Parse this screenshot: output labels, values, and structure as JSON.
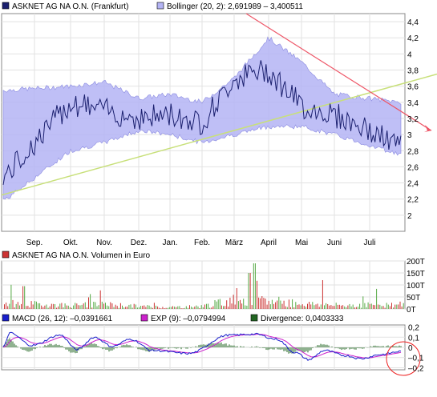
{
  "price_panel": {
    "legend": [
      {
        "label": "ASKNET AG NA O.N. (Frankfurt)",
        "color": "#1a1f6e"
      },
      {
        "label": "Bollinger (20, 2): 2,691989 – 3,400511",
        "color": "#b4b4f5"
      }
    ],
    "y_ticks": [
      "4,4",
      "4,2",
      "4",
      "3,8",
      "3,6",
      "3,4",
      "3,2",
      "3",
      "2,8",
      "2,6",
      "2,4",
      "2,2",
      "2"
    ],
    "x_ticks": [
      "Sep.",
      "Okt.",
      "Nov.",
      "Dez.",
      "Jan.",
      "Feb.",
      "März",
      "April",
      "Mai",
      "Juni",
      "Juli"
    ]
  },
  "volume_panel": {
    "legend": [
      {
        "label": "ASKNET AG NA O.N. Volumen in Euro",
        "color": "#cc3333"
      }
    ],
    "y_ticks": [
      "200T",
      "150T",
      "100T",
      "50T",
      "0T"
    ]
  },
  "macd_panel": {
    "legend": [
      {
        "label": "MACD (26, 12): –0,0391661",
        "color": "#1a1fcc"
      },
      {
        "label": "EXP (9): –0,0794994",
        "color": "#cc22cc"
      },
      {
        "label": "Divergence: 0,0403333",
        "color": "#226622"
      }
    ],
    "y_ticks": [
      "0,2",
      "0,1",
      "0",
      "–0,1",
      "–0,2"
    ]
  },
  "colors": {
    "price": "#1a1f6e",
    "band": "#b4b4f5",
    "trend_up": "#c8e07a",
    "trend_down": "#ee5566",
    "volume": "#cc3333",
    "volume_green": "#55aa44",
    "macd": "#1a1fcc",
    "signal": "#cc22cc",
    "divergence": "#226622",
    "highlight": "#ee2222"
  },
  "chart_data": [
    {
      "type": "line",
      "title": "ASKNET AG NA O.N. (Frankfurt)",
      "x": [
        "Sep.",
        "Okt.",
        "Nov.",
        "Dez.",
        "Jan.",
        "Feb.",
        "März",
        "April",
        "Mai",
        "Juni",
        "Juli"
      ],
      "series": [
        {
          "name": "ASKNET AG NA O.N. (Frankfurt)",
          "values": [
            2.5,
            3.4,
            3.3,
            3.2,
            3.25,
            3.15,
            3.7,
            3.8,
            3.35,
            3.25,
            2.85
          ]
        },
        {
          "name": "Bollinger (20, 2) upper",
          "values": [
            3.55,
            3.6,
            3.65,
            3.45,
            3.5,
            3.4,
            3.7,
            4.2,
            3.9,
            3.5,
            3.4
          ]
        },
        {
          "name": "Bollinger (20, 2) lower",
          "values": [
            2.2,
            2.8,
            2.9,
            3.05,
            3.0,
            2.9,
            3.0,
            3.1,
            3.1,
            3.0,
            2.75
          ]
        }
      ],
      "ylim": [
        1.8,
        4.5
      ],
      "grid": true,
      "legend": "top-left"
    },
    {
      "type": "bar",
      "title": "ASKNET AG NA O.N. Volumen in Euro",
      "x": [
        "Sep.",
        "Okt.",
        "Nov.",
        "Dez.",
        "Jan.",
        "Feb.",
        "März",
        "April",
        "Mai",
        "Juni",
        "Juli"
      ],
      "series": [
        {
          "name": "ASKNET AG NA O.N. Volumen in Euro",
          "values": [
            30,
            20,
            25,
            15,
            10,
            15,
            50,
            40,
            30,
            20,
            25
          ]
        }
      ],
      "ylim": [
        0,
        200
      ],
      "grid": true,
      "legend": "top-left"
    },
    {
      "type": "line",
      "x": [
        "Sep.",
        "Okt.",
        "Nov.",
        "Dez.",
        "Jan.",
        "Feb.",
        "März",
        "April",
        "Mai",
        "Juni",
        "Juli"
      ],
      "series": [
        {
          "name": "MACD (26, 12)",
          "values": [
            0.05,
            0.12,
            0.08,
            0.05,
            0.0,
            -0.05,
            0.12,
            0.1,
            -0.05,
            -0.08,
            -0.04
          ]
        },
        {
          "name": "EXP (9)",
          "values": [
            0.04,
            0.1,
            0.09,
            0.06,
            0.01,
            -0.04,
            0.1,
            0.12,
            -0.02,
            -0.09,
            -0.08
          ]
        },
        {
          "name": "Divergence",
          "values": [
            0.01,
            0.02,
            -0.01,
            -0.01,
            -0.01,
            -0.01,
            0.02,
            -0.02,
            -0.03,
            0.01,
            0.04
          ]
        }
      ],
      "ylim": [
        -0.2,
        0.2
      ],
      "grid": true,
      "legend": "top-left"
    }
  ]
}
